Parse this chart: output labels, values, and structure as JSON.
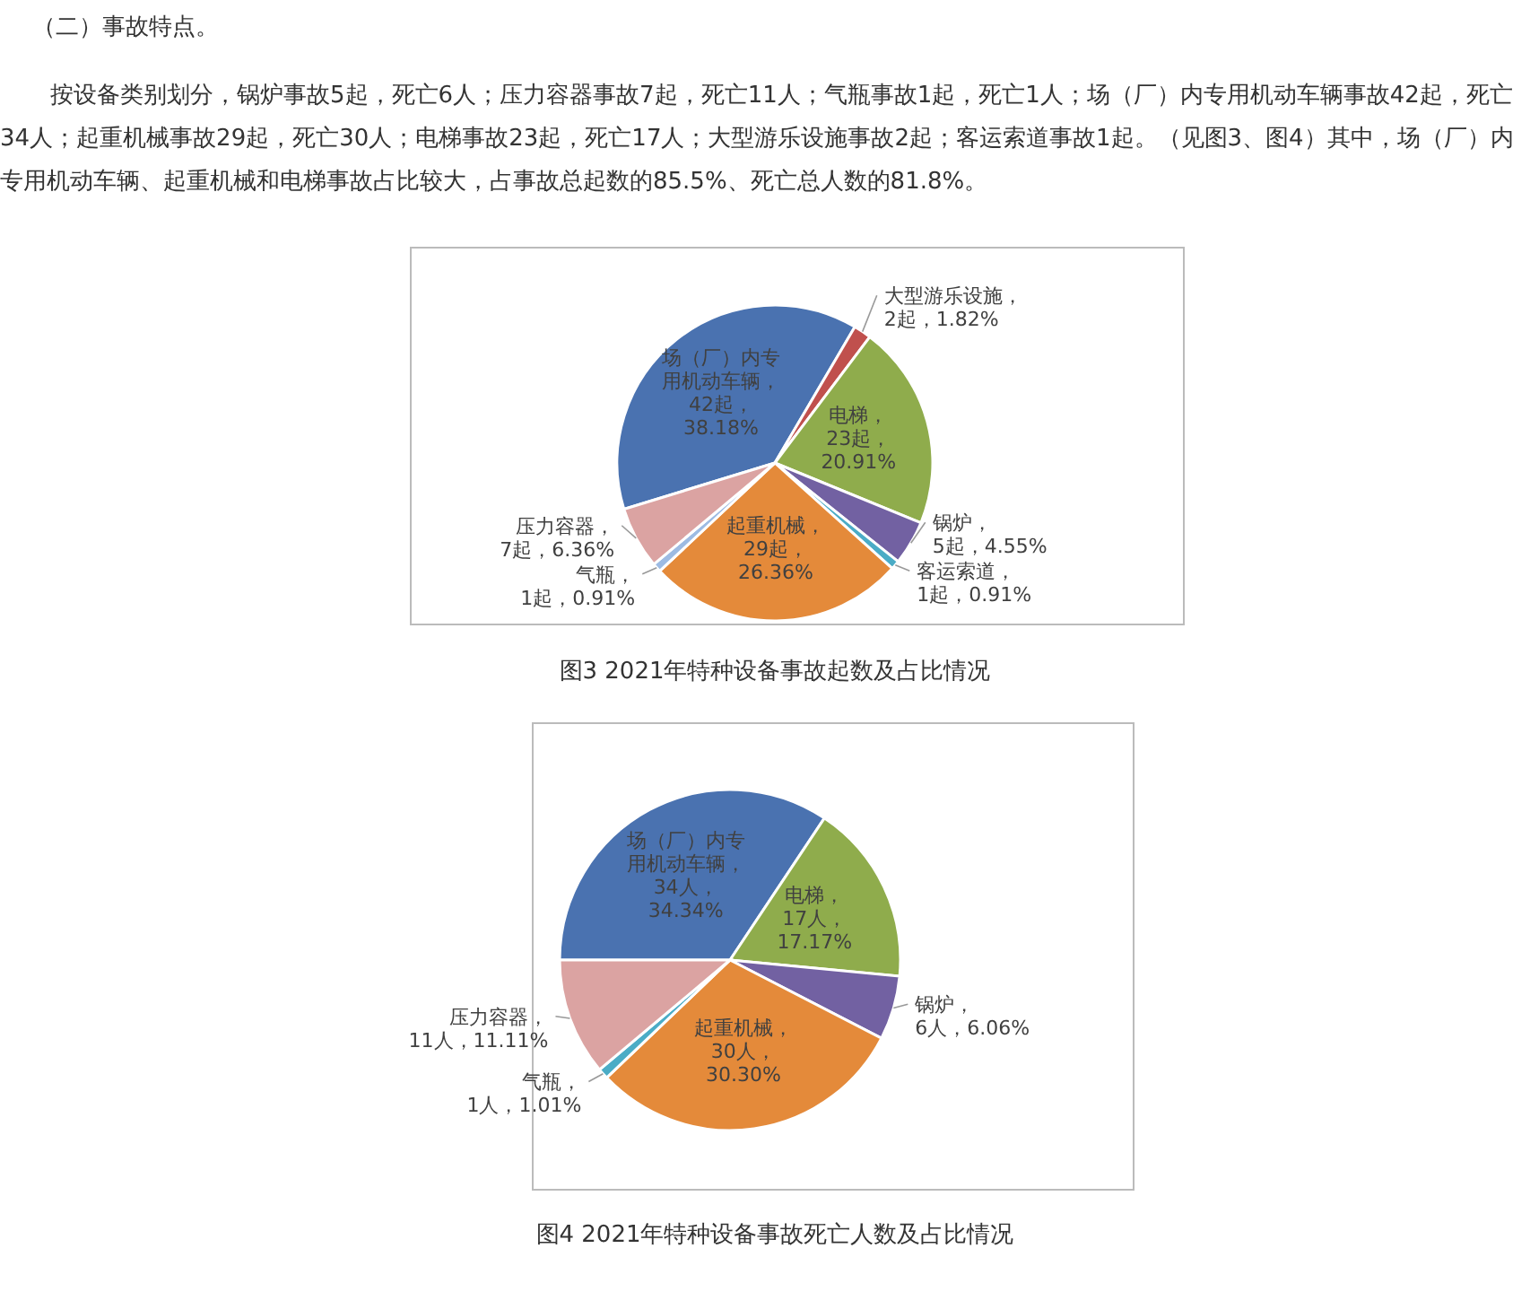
{
  "chart_data": [
    {
      "type": "pie",
      "title": "图3  2021年特种设备事故起数及占比情况",
      "annotations": [
        "（二）事故特点。",
        "按设备类别划分，锅炉事故5起，死亡6人；压力容器事故7起，死亡11人；气瓶事故1起，死亡1人；场（厂）内专用机动车辆事故42起，死亡34人；起重机械事故29起，死亡30人；电梯事故23起，死亡17人；大型游乐设施事故2起；客运索道事故1起。（见图3、图4）其中，场（厂）内专用机动车辆、起重机械和电梯事故占比较大，占事故总起数的85.5%、死亡总人数的81.8%。"
      ],
      "categories": [
        "场（厂）内专用机动车辆",
        "大型游乐设施",
        "电梯",
        "锅炉",
        "客运索道",
        "起重机械",
        "气瓶",
        "压力容器"
      ],
      "values": [
        42,
        2,
        23,
        5,
        1,
        29,
        1,
        7
      ],
      "value_labels": [
        "，42起，38.18%",
        "，2起，1.82%",
        "，23起，20.91%",
        "，5起，4.55%",
        "，1起，0.91%",
        "，29起，26.36%",
        "，1起，0.91%",
        "，7起，6.36%"
      ],
      "colors": [
        "#4a72b0",
        "#c0504d",
        "#8fac4c",
        "#7261a2",
        "#4bacc6",
        "#e48a3a",
        "#9dbbe3",
        "#dba3a2"
      ]
    },
    {
      "type": "pie",
      "title": "图4  2021年特种设备事故死亡人数及占比情况",
      "categories": [
        "场（厂）内专用机动车辆",
        "电梯",
        "锅炉",
        "起重机械",
        "气瓶",
        "压力容器"
      ],
      "values": [
        34,
        17,
        6,
        30,
        1,
        11
      ],
      "value_labels": [
        "，34人，34.34%",
        "，17人，17.17%",
        "，6人，6.06%",
        "，30人，30.30%",
        "，1人，1.01%",
        "，11人，11.11%"
      ],
      "colors": [
        "#4a72b0",
        "#8fac4c",
        "#7261a2",
        "#e48a3a",
        "#4bacc6",
        "#dba3a2"
      ]
    }
  ]
}
